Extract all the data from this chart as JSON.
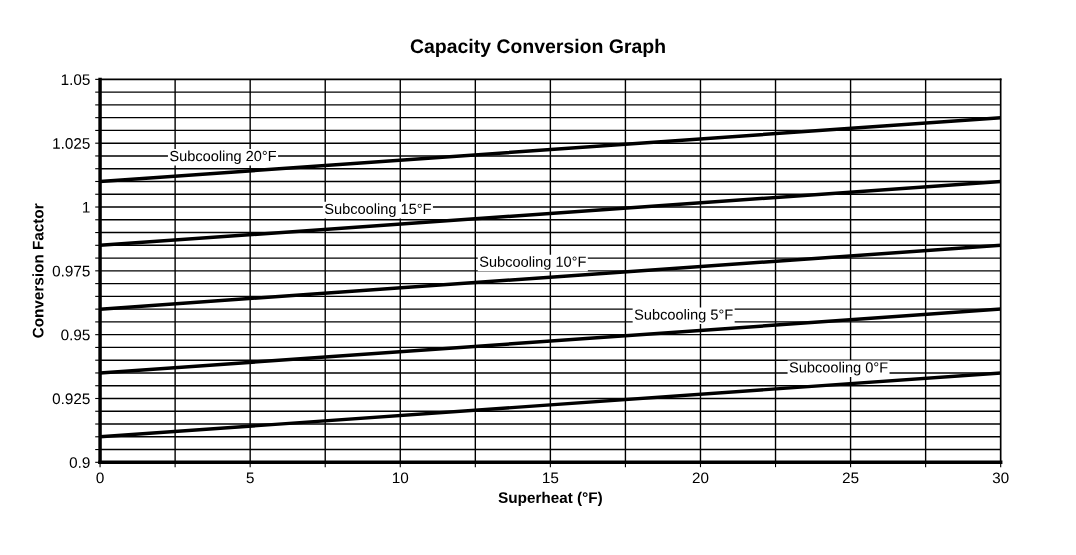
{
  "chart_data": {
    "type": "line",
    "title": "Capacity Conversion Graph",
    "xlabel": "Superheat (°F)",
    "ylabel": "Conversion Factor",
    "x": [
      0,
      30
    ],
    "series": [
      {
        "name": "Subcooling 20°F",
        "color": "#000000",
        "values": [
          1.01,
          1.035
        ]
      },
      {
        "name": "Subcooling 15°F",
        "color": "#000000",
        "values": [
          0.985,
          1.01
        ]
      },
      {
        "name": "Subcooling 10°F",
        "color": "#000000",
        "values": [
          0.96,
          0.985
        ]
      },
      {
        "name": "Subcooling 5°F",
        "color": "#000000",
        "values": [
          0.935,
          0.96
        ]
      },
      {
        "name": "Subcooling 0°F",
        "color": "#000000",
        "values": [
          0.91,
          0.935
        ]
      }
    ],
    "xlim": [
      0,
      30
    ],
    "ylim": [
      0.9,
      1.05
    ],
    "xticks": [
      0,
      {
        "value": 2.5,
        "label": null
      },
      5,
      {
        "value": 7.5,
        "label": null
      },
      10,
      {
        "value": 12.5,
        "label": null
      },
      15,
      {
        "value": 17.5,
        "label": null
      },
      20,
      {
        "value": 22.5,
        "label": null
      },
      25,
      {
        "value": 27.5,
        "label": null
      },
      30
    ],
    "yticks": [
      {
        "value": 0.9,
        "label": "0.9"
      },
      {
        "value": 0.905,
        "label": null
      },
      {
        "value": 0.91,
        "label": null
      },
      {
        "value": 0.915,
        "label": null
      },
      {
        "value": 0.92,
        "label": null
      },
      {
        "value": 0.925,
        "label": "0.925"
      },
      {
        "value": 0.93,
        "label": null
      },
      {
        "value": 0.935,
        "label": null
      },
      {
        "value": 0.94,
        "label": null
      },
      {
        "value": 0.945,
        "label": null
      },
      {
        "value": 0.95,
        "label": "0.95"
      },
      {
        "value": 0.955,
        "label": null
      },
      {
        "value": 0.96,
        "label": null
      },
      {
        "value": 0.965,
        "label": null
      },
      {
        "value": 0.97,
        "label": null
      },
      {
        "value": 0.975,
        "label": "0.975"
      },
      {
        "value": 0.98,
        "label": null
      },
      {
        "value": 0.985,
        "label": null
      },
      {
        "value": 0.99,
        "label": null
      },
      {
        "value": 0.995,
        "label": null
      },
      {
        "value": 1,
        "label": "1"
      },
      {
        "value": 1.005,
        "label": null
      },
      {
        "value": 1.01,
        "label": null
      },
      {
        "value": 1.015,
        "label": null
      },
      {
        "value": 1.02,
        "label": null
      },
      {
        "value": 1.025,
        "label": "1.025"
      },
      {
        "value": 1.03,
        "label": null
      },
      {
        "value": 1.035,
        "label": null
      },
      {
        "value": 1.04,
        "label": null
      },
      {
        "value": 1.045,
        "label": null
      },
      {
        "value": 1.05,
        "label": "1.05"
      }
    ],
    "grid": true,
    "legend": false,
    "marker": "none",
    "line_style": "solid"
  }
}
